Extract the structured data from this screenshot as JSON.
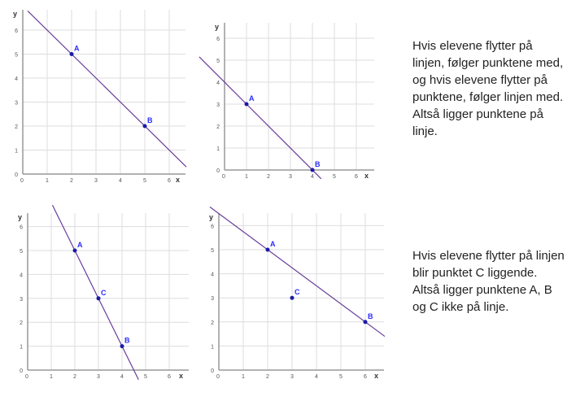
{
  "chart_data": [
    {
      "type": "scatter",
      "xlabel": "x",
      "ylabel": "y",
      "xlim": [
        0,
        6.7
      ],
      "ylim": [
        0,
        6.7
      ],
      "x_ticks": [
        "0",
        "1",
        "2",
        "3",
        "4",
        "5",
        "6"
      ],
      "y_ticks": [
        "0",
        "1",
        "2",
        "3",
        "4",
        "5",
        "6"
      ],
      "grid": true,
      "points": [
        {
          "label": "A",
          "x": 2,
          "y": 5
        },
        {
          "label": "B",
          "x": 5,
          "y": 2
        }
      ],
      "line": {
        "slope": -1,
        "intercept": 7,
        "x_range": [
          0.2,
          6.7
        ]
      }
    },
    {
      "type": "scatter",
      "xlabel": "x",
      "ylabel": "y",
      "xlim": [
        0,
        6.7
      ],
      "ylim": [
        0,
        6.7
      ],
      "x_ticks": [
        "0",
        "1",
        "2",
        "3",
        "4",
        "5",
        "6"
      ],
      "y_ticks": [
        "0",
        "1",
        "2",
        "3",
        "4",
        "5",
        "6"
      ],
      "grid": true,
      "points": [
        {
          "label": "A",
          "x": 1,
          "y": 3
        },
        {
          "label": "B",
          "x": 4,
          "y": 0
        }
      ],
      "line": {
        "slope": -1,
        "intercept": 4,
        "x_range": [
          -1.15,
          4.4
        ]
      }
    },
    {
      "type": "scatter",
      "xlabel": "x",
      "ylabel": "y",
      "xlim": [
        0,
        6.7
      ],
      "ylim": [
        0,
        6.7
      ],
      "x_ticks": [
        "0",
        "1",
        "2",
        "3",
        "4",
        "5",
        "6"
      ],
      "y_ticks": [
        "0",
        "1",
        "2",
        "3",
        "4",
        "5",
        "6"
      ],
      "grid": true,
      "points": [
        {
          "label": "A",
          "x": 2,
          "y": 5
        },
        {
          "label": "C",
          "x": 3,
          "y": 3
        },
        {
          "label": "B",
          "x": 4,
          "y": 1
        }
      ],
      "line": {
        "slope": -2,
        "intercept": 9,
        "x_range": [
          1.05,
          4.7
        ]
      }
    },
    {
      "type": "scatter",
      "xlabel": "x",
      "ylabel": "y",
      "xlim": [
        0,
        6.7
      ],
      "ylim": [
        0,
        6.7
      ],
      "x_ticks": [
        "0",
        "1",
        "2",
        "3",
        "4",
        "5",
        "6"
      ],
      "y_ticks": [
        "0",
        "1",
        "2",
        "3",
        "4",
        "5",
        "6"
      ],
      "grid": true,
      "points": [
        {
          "label": "A",
          "x": 2,
          "y": 5
        },
        {
          "label": "C",
          "x": 3,
          "y": 3
        },
        {
          "label": "B",
          "x": 6,
          "y": 2
        }
      ],
      "line": {
        "slope": -0.75,
        "intercept": 6.5,
        "x_range": [
          -0.37,
          6.8
        ]
      }
    }
  ],
  "colors": {
    "line": "#6a3d9a",
    "point": "#1a1aa8",
    "label": "#2b2bff",
    "grid": "#dddddd",
    "axis": "#999999"
  },
  "notes": [
    "Hvis elevene flytter på linjen, følger punktene med, og hvis elevene flytter på punktene, følger linjen med. Altså ligger punktene på linje.",
    "Hvis elevene flytter på linjen blir punktet C liggende. Altså ligger punktene A, B og C ikke på linje."
  ]
}
